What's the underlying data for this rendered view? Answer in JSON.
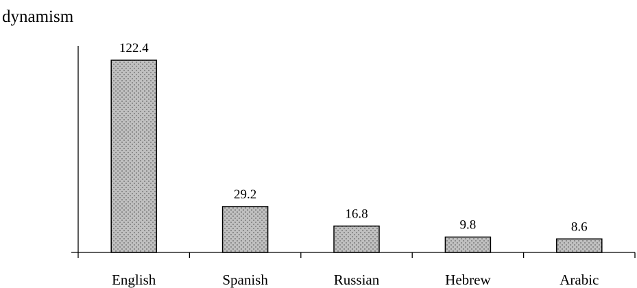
{
  "chart_data": {
    "type": "bar",
    "ylabel": "dynamism",
    "categories": [
      "English",
      "Spanish",
      "Russian",
      "Hebrew",
      "Arabic"
    ],
    "values": [
      122.4,
      29.2,
      16.8,
      9.8,
      8.6
    ],
    "value_labels": [
      "122.4",
      "29.2",
      "16.8",
      "9.8",
      "8.6"
    ],
    "ylim": [
      0,
      126
    ],
    "grid": false,
    "legend": "none",
    "colors": {
      "bar_fill": "#c0c0c0",
      "bar_pattern": "#8c8c8c",
      "bar_stroke": "#000000",
      "axis": "#000000"
    }
  }
}
